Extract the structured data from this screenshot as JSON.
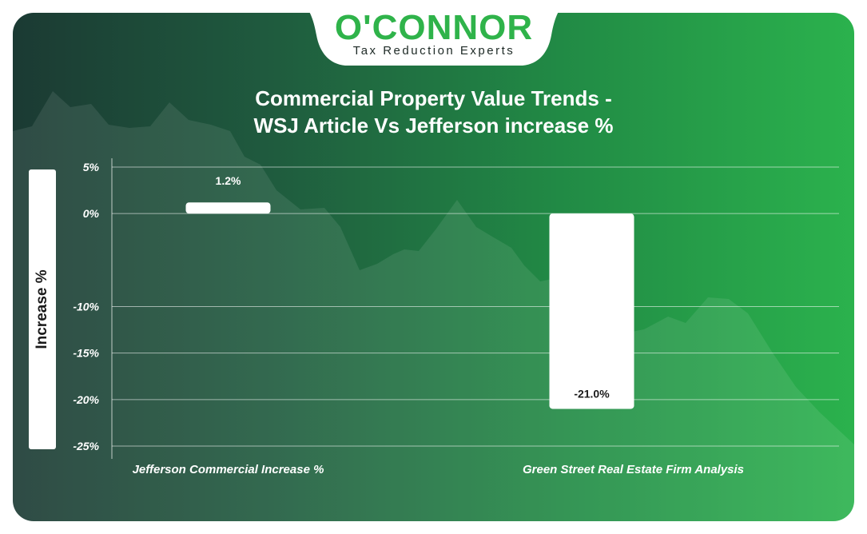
{
  "brand": {
    "logo_text": "O'CONNOR",
    "tagline": "Tax Reduction Experts",
    "accent_color": "#2fb34a"
  },
  "chart_data": {
    "type": "bar",
    "title_lines": [
      "Commercial Property Value Trends -",
      "WSJ Article Vs Jefferson increase %"
    ],
    "ylabel": "Increase %",
    "xlabel": "",
    "categories": [
      "Jefferson Commercial Increase %",
      "Green Street Real Estate Firm Analysis"
    ],
    "values": [
      1.2,
      -21.0
    ],
    "value_labels": [
      "1.2%",
      "-21.0%"
    ],
    "yticks": [
      5,
      0,
      -10,
      -15,
      -20,
      -25
    ],
    "ytick_labels": [
      "5%",
      "0%",
      "-10%",
      "-15%",
      "-20%",
      "-25%"
    ],
    "ylim": [
      -25,
      5
    ],
    "grid": true,
    "bar_color": "#ffffff",
    "text_color": "#ffffff"
  }
}
